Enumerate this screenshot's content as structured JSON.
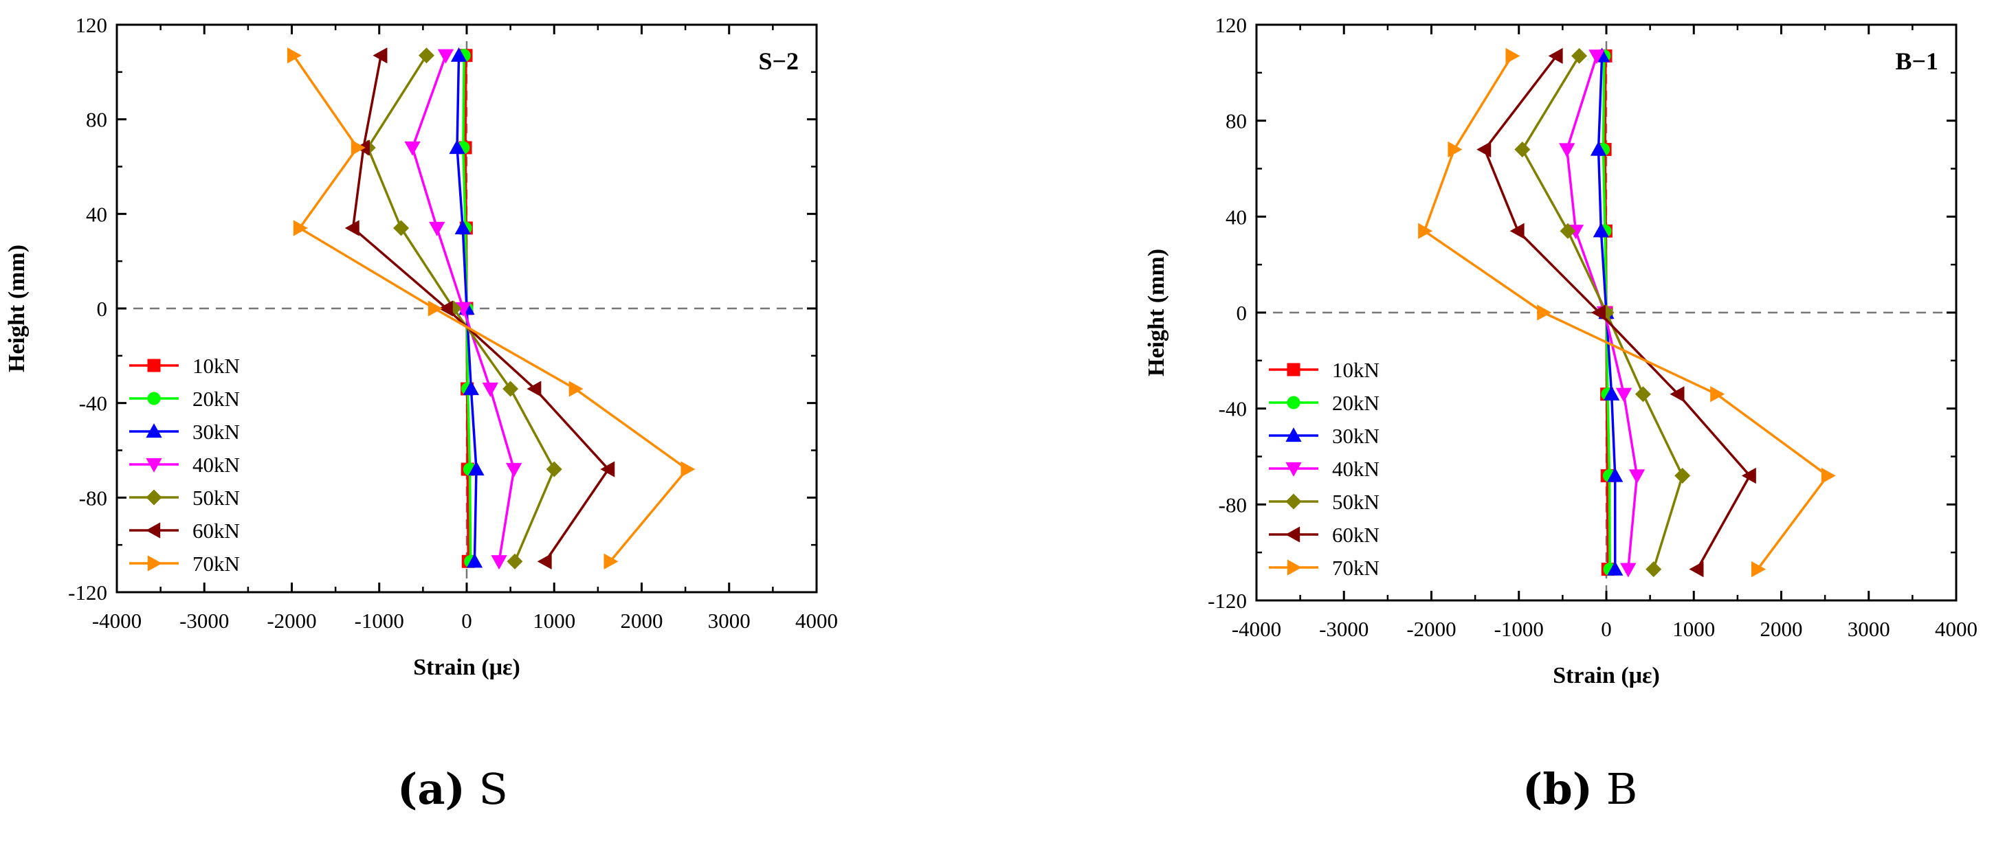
{
  "chart_data": [
    {
      "type": "line",
      "panel_label": "S−2",
      "xlabel": "Strain (με)",
      "ylabel": "Height (mm)",
      "xlim": [
        -4000,
        4000
      ],
      "ylim": [
        -120,
        120
      ],
      "xticks": [
        -4000,
        -3000,
        -2000,
        -1000,
        0,
        1000,
        2000,
        3000,
        4000
      ],
      "yticks": [
        -120,
        -80,
        -40,
        0,
        40,
        80,
        120
      ],
      "legend_position": "left-bottom",
      "heights": [
        107,
        68,
        34,
        0,
        -34,
        -68,
        -107
      ],
      "series": [
        {
          "name": "10kN",
          "color": "#ff0000",
          "marker": "square",
          "strain": [
            -8,
            -15,
            -5,
            0,
            5,
            10,
            18
          ]
        },
        {
          "name": "20kN",
          "color": "#00ff00",
          "marker": "circle",
          "strain": [
            -30,
            -40,
            -15,
            0,
            12,
            35,
            45
          ]
        },
        {
          "name": "30kN",
          "color": "#0000ff",
          "marker": "triangle-up",
          "strain": [
            -90,
            -110,
            -45,
            0,
            50,
            110,
            90
          ]
        },
        {
          "name": "40kN",
          "color": "#ff00ff",
          "marker": "triangle-down",
          "strain": [
            -240,
            -620,
            -340,
            -40,
            270,
            540,
            370
          ]
        },
        {
          "name": "50kN",
          "color": "#808000",
          "marker": "diamond",
          "strain": [
            -460,
            -1130,
            -750,
            -150,
            500,
            1000,
            550
          ]
        },
        {
          "name": "60kN",
          "color": "#800000",
          "marker": "triangle-left",
          "strain": [
            -980,
            -1180,
            -1300,
            -230,
            780,
            1620,
            900
          ]
        },
        {
          "name": "70kN",
          "color": "#ff8c00",
          "marker": "triangle-right",
          "strain": [
            -1980,
            -1250,
            -1910,
            -370,
            1240,
            2520,
            1640
          ]
        }
      ]
    },
    {
      "type": "line",
      "panel_label": "B−1",
      "xlabel": "Strain (με)",
      "ylabel": "Height (mm)",
      "xlim": [
        -4000,
        4000
      ],
      "ylim": [
        -120,
        120
      ],
      "xticks": [
        -4000,
        -3000,
        -2000,
        -1000,
        0,
        1000,
        2000,
        3000,
        4000
      ],
      "yticks": [
        -120,
        -80,
        -40,
        0,
        40,
        80,
        120
      ],
      "legend_position": "left-bottom",
      "heights": [
        107,
        68,
        34,
        0,
        -34,
        -68,
        -107
      ],
      "series": [
        {
          "name": "10kN",
          "color": "#ff0000",
          "marker": "square",
          "strain": [
            -8,
            -15,
            -5,
            0,
            5,
            10,
            18
          ]
        },
        {
          "name": "20kN",
          "color": "#00ff00",
          "marker": "circle",
          "strain": [
            -25,
            -35,
            -15,
            0,
            15,
            35,
            40
          ]
        },
        {
          "name": "30kN",
          "color": "#0000ff",
          "marker": "triangle-up",
          "strain": [
            -50,
            -90,
            -60,
            0,
            60,
            100,
            100
          ]
        },
        {
          "name": "40kN",
          "color": "#ff00ff",
          "marker": "triangle-down",
          "strain": [
            -110,
            -450,
            -350,
            -20,
            200,
            350,
            250
          ]
        },
        {
          "name": "50kN",
          "color": "#808000",
          "marker": "diamond",
          "strain": [
            -310,
            -960,
            -440,
            0,
            420,
            870,
            540
          ]
        },
        {
          "name": "60kN",
          "color": "#800000",
          "marker": "triangle-left",
          "strain": [
            -570,
            -1390,
            -1010,
            -80,
            820,
            1640,
            1040
          ]
        },
        {
          "name": "70kN",
          "color": "#ff8c00",
          "marker": "triangle-right",
          "strain": [
            -1080,
            -1740,
            -2080,
            -720,
            1260,
            2530,
            1730
          ]
        }
      ]
    }
  ],
  "captions": [
    {
      "letter": "(a)",
      "text": " S"
    },
    {
      "letter": "(b)",
      "text": " B"
    }
  ]
}
